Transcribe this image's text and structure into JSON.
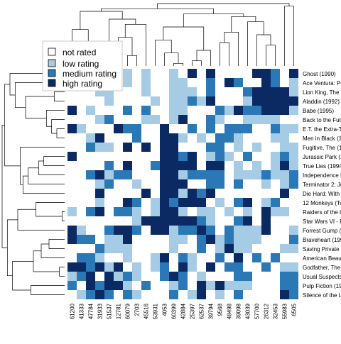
{
  "chart_data": {
    "type": "heatmap",
    "title": "",
    "legend": {
      "position": "top-left",
      "entries": [
        {
          "label": "not rated",
          "value": 0
        },
        {
          "label": "low rating",
          "value": 1
        },
        {
          "label": "medium rating",
          "value": 2
        },
        {
          "label": "high rating",
          "value": 3
        }
      ]
    },
    "colors": [
      "#ffffff",
      "#a6cbe4",
      "#2b78b6",
      "#0b2a63"
    ],
    "dendrograms": [
      "top (columns)",
      "left (rows)"
    ],
    "columns": [
      "61200",
      "41333",
      "47784",
      "31933",
      "51537",
      "12781",
      "60079",
      "2703",
      "45516",
      "53931",
      "4053",
      "60399",
      "42884",
      "25397",
      "62537",
      "39794",
      "9568",
      "48498",
      "39098",
      "43039",
      "57700",
      "26312",
      "32453",
      "55983",
      "6505"
    ],
    "rows": [
      "Ghost (1990)",
      "Ace Ventura: Pe",
      "Lion King, The (",
      "Aladdin (1992)",
      "Babe (1995)",
      "Back to the Futu",
      "E.T. the Extra-T",
      "Men in Black (1",
      "Fugitive, The (1",
      "Jurassic Park (1",
      "True Lies (1994",
      "Independence D",
      "Terminator 2: Ju",
      "Die Hard: With",
      "12 Monkeys (Tw",
      "Raiders of the L",
      "Star Wars VI - F",
      "Forrest Gump (",
      "Braveheart (199",
      "Saving Private F",
      "American Beau",
      "Godfather, The",
      "Usual Suspects",
      "Pulp Fiction (19",
      "Silence of the L"
    ],
    "values": [
      [
        0,
        0,
        0,
        1,
        0,
        0,
        1,
        0,
        1,
        0,
        0,
        1,
        0,
        3,
        0,
        3,
        0,
        0,
        0,
        0,
        3,
        3,
        2,
        0,
        3
      ],
      [
        2,
        0,
        0,
        0,
        0,
        0,
        1,
        0,
        1,
        0,
        0,
        1,
        1,
        0,
        0,
        2,
        0,
        3,
        2,
        0,
        0,
        3,
        2,
        0,
        1
      ],
      [
        0,
        0,
        0,
        1,
        1,
        0,
        0,
        0,
        1,
        0,
        0,
        1,
        1,
        1,
        0,
        2,
        0,
        0,
        0,
        2,
        3,
        3,
        3,
        3,
        1
      ],
      [
        0,
        0,
        0,
        0,
        1,
        0,
        0,
        0,
        0,
        1,
        0,
        1,
        1,
        2,
        1,
        3,
        0,
        0,
        0,
        1,
        3,
        3,
        3,
        3,
        3
      ],
      [
        3,
        0,
        1,
        0,
        0,
        0,
        2,
        0,
        2,
        0,
        0,
        1,
        1,
        0,
        0,
        0,
        2,
        1,
        3,
        2,
        2,
        3,
        3,
        3,
        1
      ],
      [
        0,
        0,
        0,
        1,
        2,
        0,
        0,
        0,
        1,
        1,
        0,
        1,
        3,
        0,
        0,
        2,
        1,
        0,
        0,
        1,
        1,
        1,
        1,
        0,
        0
      ],
      [
        3,
        1,
        0,
        0,
        0,
        3,
        2,
        2,
        0,
        0,
        3,
        0,
        0,
        2,
        0,
        2,
        0,
        2,
        2,
        2,
        0,
        0,
        2,
        1,
        1
      ],
      [
        0,
        0,
        1,
        3,
        0,
        0,
        0,
        2,
        0,
        0,
        3,
        3,
        1,
        0,
        1,
        0,
        2,
        2,
        1,
        0,
        0,
        0,
        1,
        1,
        0
      ],
      [
        0,
        0,
        2,
        1,
        1,
        0,
        3,
        0,
        3,
        0,
        3,
        3,
        0,
        0,
        0,
        2,
        2,
        0,
        1,
        0,
        1,
        0,
        0,
        1,
        1
      ],
      [
        3,
        0,
        0,
        0,
        0,
        0,
        0,
        0,
        0,
        0,
        3,
        3,
        2,
        3,
        0,
        1,
        2,
        1,
        0,
        2,
        0,
        0,
        1,
        2,
        1
      ],
      [
        0,
        0,
        0,
        0,
        2,
        0,
        3,
        0,
        0,
        2,
        3,
        3,
        3,
        3,
        0,
        3,
        3,
        0,
        1,
        0,
        1,
        0,
        1,
        3,
        1
      ],
      [
        0,
        0,
        2,
        3,
        1,
        2,
        2,
        0,
        0,
        0,
        3,
        3,
        1,
        2,
        2,
        2,
        2,
        0,
        1,
        1,
        1,
        2,
        1,
        1,
        2
      ],
      [
        0,
        0,
        0,
        1,
        2,
        0,
        0,
        1,
        0,
        0,
        3,
        3,
        3,
        0,
        0,
        2,
        2,
        0,
        2,
        0,
        0,
        1,
        0,
        1,
        2
      ],
      [
        0,
        0,
        0,
        3,
        0,
        0,
        0,
        0,
        3,
        0,
        3,
        3,
        1,
        3,
        2,
        3,
        0,
        0,
        0,
        0,
        0,
        0,
        0,
        3,
        0
      ],
      [
        0,
        0,
        0,
        1,
        0,
        0,
        3,
        2,
        0,
        1,
        3,
        2,
        3,
        3,
        3,
        0,
        1,
        0,
        2,
        3,
        0,
        1,
        2,
        0,
        0
      ],
      [
        1,
        0,
        2,
        3,
        0,
        2,
        2,
        1,
        0,
        1,
        3,
        3,
        1,
        0,
        1,
        1,
        0,
        1,
        0,
        1,
        0,
        3,
        1,
        1,
        0
      ],
      [
        0,
        0,
        0,
        0,
        0,
        0,
        0,
        1,
        3,
        3,
        3,
        3,
        3,
        3,
        2,
        1,
        0,
        0,
        2,
        3,
        0,
        3,
        0,
        0,
        0
      ],
      [
        3,
        1,
        0,
        0,
        2,
        3,
        3,
        2,
        0,
        3,
        3,
        1,
        2,
        2,
        3,
        2,
        0,
        2,
        1,
        1,
        1,
        3,
        0,
        0,
        1
      ],
      [
        3,
        2,
        2,
        0,
        1,
        1,
        3,
        0,
        0,
        0,
        0,
        1,
        1,
        0,
        2,
        3,
        1,
        2,
        1,
        1,
        1,
        0,
        0,
        0,
        2
      ],
      [
        0,
        0,
        0,
        2,
        1,
        1,
        1,
        0,
        0,
        0,
        0,
        1,
        0,
        0,
        2,
        0,
        1,
        3,
        1,
        1,
        0,
        0,
        0,
        1,
        1
      ],
      [
        0,
        2,
        2,
        1,
        0,
        0,
        1,
        0,
        0,
        1,
        3,
        0,
        2,
        1,
        0,
        0,
        2,
        0,
        3,
        0,
        2,
        0,
        2,
        0,
        0
      ],
      [
        3,
        3,
        2,
        3,
        1,
        3,
        0,
        1,
        0,
        1,
        2,
        0,
        3,
        1,
        0,
        3,
        0,
        2,
        2,
        0,
        0,
        2,
        0,
        1,
        1
      ],
      [
        1,
        2,
        3,
        0,
        3,
        1,
        2,
        1,
        0,
        0,
        2,
        3,
        2,
        0,
        1,
        0,
        0,
        0,
        2,
        2,
        0,
        0,
        0,
        2,
        2
      ],
      [
        2,
        0,
        3,
        2,
        3,
        3,
        1,
        0,
        2,
        0,
        0,
        1,
        2,
        0,
        3,
        1,
        3,
        1,
        1,
        1,
        0,
        0,
        0,
        2,
        2
      ],
      [
        0,
        1,
        2,
        3,
        2,
        0,
        2,
        1,
        0,
        0,
        0,
        2,
        0,
        1,
        3,
        0,
        1,
        0,
        2,
        0,
        0,
        0,
        0,
        3,
        2
      ]
    ]
  }
}
